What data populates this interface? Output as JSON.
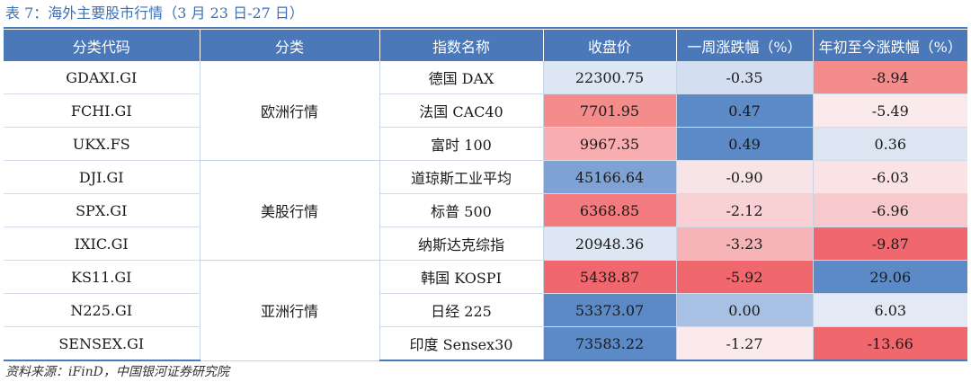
{
  "caption": "表 7：海外主要股市行情（3 月 23 日-27 日）",
  "headers": [
    "分类代码",
    "分类",
    "指数名称",
    "收盘价",
    "一周涨跌幅（%）",
    "年初至今涨跌幅（%）"
  ],
  "groups": [
    {
      "label": "欧洲行情",
      "rows": 3
    },
    {
      "label": "美股行情",
      "rows": 3
    },
    {
      "label": "亚洲行情",
      "rows": 3
    }
  ],
  "rows": [
    {
      "code": "GDAXI.GI",
      "name": "德国 DAX",
      "close": "22300.75",
      "week": "-0.35",
      "ytd": "-8.94",
      "colors": {
        "close": "#dde6f3",
        "week": "#d3def0",
        "ytd": "#f48c8c"
      }
    },
    {
      "code": "FCHI.GI",
      "name": "法国 CAC40",
      "close": "7701.95",
      "week": "0.47",
      "ytd": "-5.49",
      "colors": {
        "close": "#f48c8c",
        "week": "#5b8ac7",
        "ytd": "#fbeaec"
      }
    },
    {
      "code": "UKX.FS",
      "name": "富时 100",
      "close": "9967.35",
      "week": "0.49",
      "ytd": "0.36",
      "colors": {
        "close": "#f8adb0",
        "week": "#5b8ac7",
        "ytd": "#dce5f2"
      }
    },
    {
      "code": "DJI.GI",
      "name": "道琼斯工业平均",
      "close": "45166.64",
      "week": "-0.90",
      "ytd": "-6.03",
      "colors": {
        "close": "#7ea2d3",
        "week": "#f7e4e6",
        "ytd": "#fbe3e5"
      }
    },
    {
      "code": "SPX.GI",
      "name": "标普 500",
      "close": "6368.85",
      "week": "-2.12",
      "ytd": "-6.96",
      "colors": {
        "close": "#f27b7f",
        "week": "#f9d0d3",
        "ytd": "#f7c9cc"
      }
    },
    {
      "code": "IXIC.GI",
      "name": "纳斯达克综指",
      "close": "20948.36",
      "week": "-3.23",
      "ytd": "-9.87",
      "colors": {
        "close": "#dde6f3",
        "week": "#f6b4b7",
        "ytd": "#f0676d"
      }
    },
    {
      "code": "KS11.GI",
      "name": "韩国 KOSPI",
      "close": "5438.87",
      "week": "-5.92",
      "ytd": "29.06",
      "colors": {
        "close": "#f0676d",
        "week": "#f0676d",
        "ytd": "#5b8ac7"
      }
    },
    {
      "code": "N225.GI",
      "name": "日经 225",
      "close": "53373.07",
      "week": "0.00",
      "ytd": "6.03",
      "colors": {
        "close": "#5b8ac7",
        "week": "#a8c0e3",
        "ytd": "#e3eaf5"
      }
    },
    {
      "code": "SENSEX.GI",
      "name": "印度 Sensex30",
      "close": "73583.22",
      "week": "-1.27",
      "ytd": "-13.66",
      "colors": {
        "close": "#5b8ac7",
        "week": "#fbeaec",
        "ytd": "#f0676d"
      }
    }
  ],
  "source": "资料来源：iFinD，中国银河证券研究院"
}
